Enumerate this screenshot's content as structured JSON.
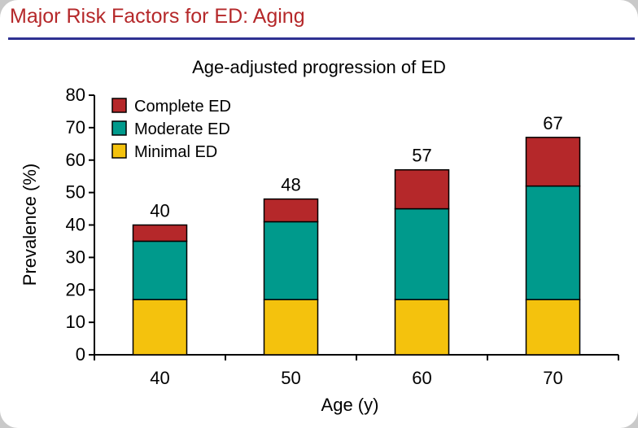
{
  "slide": {
    "title": "Major Risk Factors for ED: Aging",
    "accent_color": "#b5282a",
    "rule_color": "#2e3192"
  },
  "chart_data": {
    "type": "bar",
    "stacked": true,
    "title": "Age-adjusted progression of ED",
    "xlabel": "Age (y)",
    "ylabel": "Prevalence (%)",
    "ylim": [
      0,
      80
    ],
    "yticks": [
      0,
      10,
      20,
      30,
      40,
      50,
      60,
      70,
      80
    ],
    "categories": [
      "40",
      "50",
      "60",
      "70"
    ],
    "series": [
      {
        "name": "Minimal ED",
        "color": "#f4c20d",
        "values": [
          17,
          17,
          17,
          17
        ]
      },
      {
        "name": "Moderate ED",
        "color": "#009a8c",
        "values": [
          18,
          24,
          28,
          35
        ]
      },
      {
        "name": "Complete ED",
        "color": "#b5282a",
        "values": [
          5,
          7,
          12,
          15
        ]
      }
    ],
    "totals": [
      "40",
      "48",
      "57",
      "67"
    ],
    "legend": {
      "position": "top-left",
      "order": [
        "Complete ED",
        "Moderate ED",
        "Minimal ED"
      ]
    },
    "grid": false
  }
}
